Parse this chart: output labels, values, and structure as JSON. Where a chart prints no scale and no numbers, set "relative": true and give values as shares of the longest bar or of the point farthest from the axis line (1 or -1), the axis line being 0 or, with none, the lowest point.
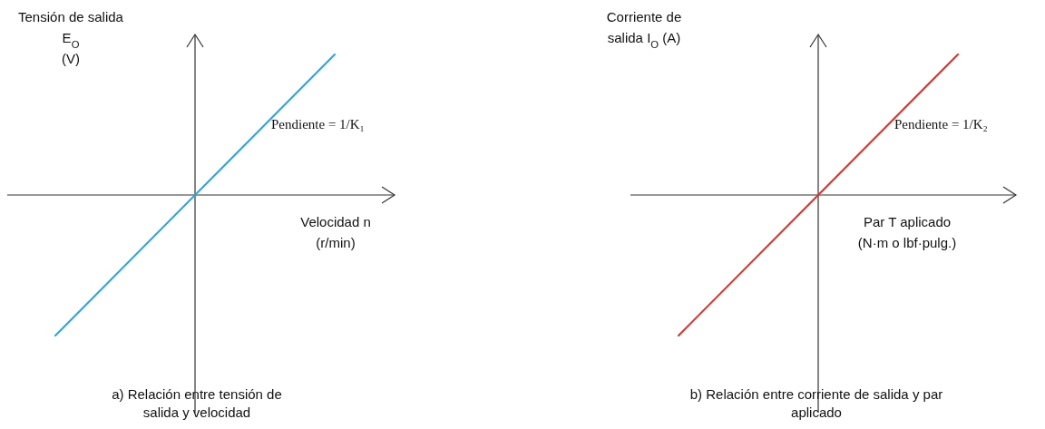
{
  "chart_data": [
    {
      "type": "line",
      "title": "a) Relación entre tensión de\nsalida y velocidad",
      "ylabel": "Tensión de salida\nE$_{O}$\n(V)",
      "xlabel": "Velocidad n\n(r/min)",
      "categories": [
        null,
        null,
        null
      ],
      "relative": true,
      "series": [
        {
          "color": "#2aa4e8",
          "values": [
            -1,
            0,
            1
          ]
        }
      ],
      "annotations": [
        "Pendiente = 1/K₁"
      ]
    },
    {
      "type": "line",
      "title": "b) Relación entre corriente de salida y par\naplicado",
      "ylabel": "Corriente de\nsalida I$_{O}$ (A)",
      "xlabel": "Par T aplicado\n(N·m o lbf·pulg.)",
      "categories": [
        null,
        null,
        null
      ],
      "relative": true,
      "series": [
        {
          "color": "#e0302a",
          "values": [
            -1,
            0,
            1
          ]
        }
      ],
      "annotations": [
        "Pendiente = 1/K₂"
      ]
    }
  ]
}
